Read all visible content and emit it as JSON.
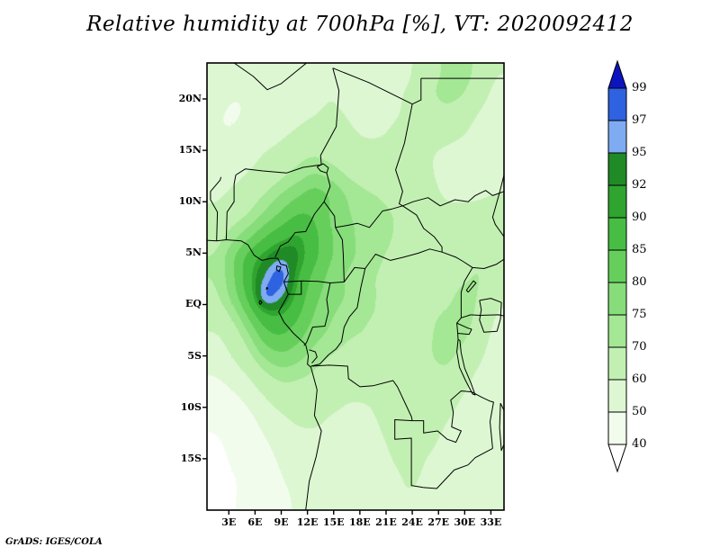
{
  "title": "Relative humidity at 700hPa [%], VT: 2020092412",
  "footer": "GrADS: IGES/COLA",
  "axes": {
    "lat_labels": [
      "20N",
      "15N",
      "10N",
      "5N",
      "EQ",
      "5S",
      "10S",
      "15S"
    ],
    "lon_labels": [
      "3E",
      "6E",
      "9E",
      "12E",
      "15E",
      "18E",
      "21E",
      "24E",
      "27E",
      "30E",
      "33E"
    ]
  },
  "colorbar": {
    "labels": [
      "99",
      "97",
      "95",
      "92",
      "90",
      "85",
      "80",
      "75",
      "70",
      "60",
      "50",
      "40"
    ]
  },
  "chart_data": {
    "type": "heatmap",
    "title": "Relative humidity at 700hPa [%]",
    "valid_time": "2020092412",
    "units": "%",
    "x_range": [
      0.5,
      34.5
    ],
    "y_range": [
      -20,
      23.5
    ],
    "lon_ticks": [
      3,
      6,
      9,
      12,
      15,
      18,
      21,
      24,
      27,
      30,
      33
    ],
    "lat_ticks": [
      20,
      15,
      10,
      5,
      0,
      -5,
      -10,
      -15
    ],
    "levels": [
      40,
      50,
      60,
      70,
      75,
      80,
      85,
      90,
      92,
      95,
      97,
      99
    ],
    "palette": [
      "#ffffff",
      "#f2fcec",
      "#ddf7d2",
      "#c2f0b2",
      "#a4e795",
      "#86dd7a",
      "#66cf5c",
      "#47bd43",
      "#2fa52f",
      "#1f8a26",
      "#7fabf2",
      "#2f62e0",
      "#0c14c0"
    ],
    "grid": {
      "lon_start": 0.5,
      "lon_step": 2.0,
      "lat_start": 23.5,
      "lat_step": -2.07,
      "values": [
        [
          54,
          53,
          51,
          50,
          52,
          55,
          57,
          58,
          57,
          55,
          53,
          55,
          60,
          66,
          71,
          72,
          67,
          60
        ],
        [
          52,
          50,
          50,
          50,
          52,
          55,
          57,
          59,
          57,
          55,
          55,
          58,
          62,
          68,
          72,
          70,
          64,
          57
        ],
        [
          50,
          49,
          50,
          52,
          55,
          57,
          59,
          61,
          59,
          57,
          57,
          59,
          62,
          65,
          67,
          64,
          59,
          54
        ],
        [
          50,
          50,
          52,
          55,
          58,
          61,
          64,
          64,
          61,
          59,
          59,
          61,
          62,
          62,
          62,
          60,
          56,
          52
        ],
        [
          52,
          54,
          56,
          60,
          63,
          67,
          69,
          67,
          64,
          62,
          62,
          62,
          61,
          60,
          58,
          56,
          54,
          51
        ],
        [
          55,
          57,
          60,
          64,
          68,
          72,
          75,
          73,
          69,
          66,
          64,
          64,
          62,
          60,
          58,
          56,
          54,
          53
        ],
        [
          58,
          61,
          65,
          70,
          75,
          79,
          82,
          79,
          74,
          71,
          69,
          67,
          64,
          61,
          59,
          58,
          58,
          60
        ],
        [
          62,
          66,
          70,
          76,
          81,
          85,
          84,
          79,
          75,
          73,
          71,
          69,
          65,
          62,
          61,
          62,
          64,
          66
        ],
        [
          66,
          72,
          78,
          84,
          88,
          90,
          86,
          80,
          76,
          73,
          71,
          69,
          66,
          63,
          62,
          64,
          67,
          68
        ],
        [
          70,
          78,
          86,
          91,
          94,
          92,
          86,
          80,
          76,
          73,
          70,
          68,
          65,
          63,
          63,
          66,
          68,
          66
        ],
        [
          70,
          78,
          88,
          95,
          98,
          90,
          83,
          78,
          74,
          71,
          69,
          67,
          65,
          63,
          64,
          68,
          70,
          64
        ],
        [
          68,
          76,
          86,
          97,
          95,
          88,
          81,
          77,
          74,
          71,
          69,
          67,
          65,
          65,
          67,
          72,
          69,
          61
        ],
        [
          64,
          70,
          80,
          88,
          89,
          85,
          79,
          75,
          72,
          70,
          69,
          67,
          66,
          68,
          71,
          73,
          67,
          59
        ],
        [
          58,
          64,
          73,
          82,
          84,
          81,
          76,
          73,
          70,
          69,
          68,
          67,
          67,
          69,
          72,
          71,
          64,
          57
        ],
        [
          54,
          59,
          67,
          75,
          78,
          76,
          72,
          69,
          67,
          66,
          66,
          66,
          67,
          69,
          71,
          67,
          61,
          55
        ],
        [
          49,
          53,
          59,
          67,
          71,
          70,
          68,
          65,
          63,
          63,
          64,
          65,
          66,
          67,
          67,
          63,
          57,
          53
        ],
        [
          44,
          47,
          52,
          59,
          64,
          65,
          64,
          62,
          60,
          60,
          61,
          63,
          64,
          65,
          63,
          59,
          55,
          51
        ],
        [
          41,
          43,
          47,
          53,
          58,
          61,
          61,
          59,
          58,
          58,
          60,
          62,
          63,
          63,
          60,
          57,
          54,
          51
        ],
        [
          39,
          41,
          44,
          49,
          54,
          57,
          58,
          57,
          56,
          57,
          59,
          61,
          62,
          61,
          58,
          55,
          53,
          51
        ],
        [
          38,
          40,
          42,
          46,
          51,
          54,
          56,
          55,
          55,
          56,
          58,
          60,
          61,
          59,
          57,
          55,
          53,
          52
        ],
        [
          38,
          39,
          41,
          44,
          49,
          52,
          54,
          54,
          54,
          55,
          57,
          59,
          60,
          58,
          56,
          54,
          53,
          53
        ],
        [
          38,
          39,
          41,
          43,
          47,
          51,
          53,
          53,
          54,
          55,
          57,
          59,
          59,
          57,
          55,
          54,
          54,
          54
        ]
      ]
    }
  }
}
